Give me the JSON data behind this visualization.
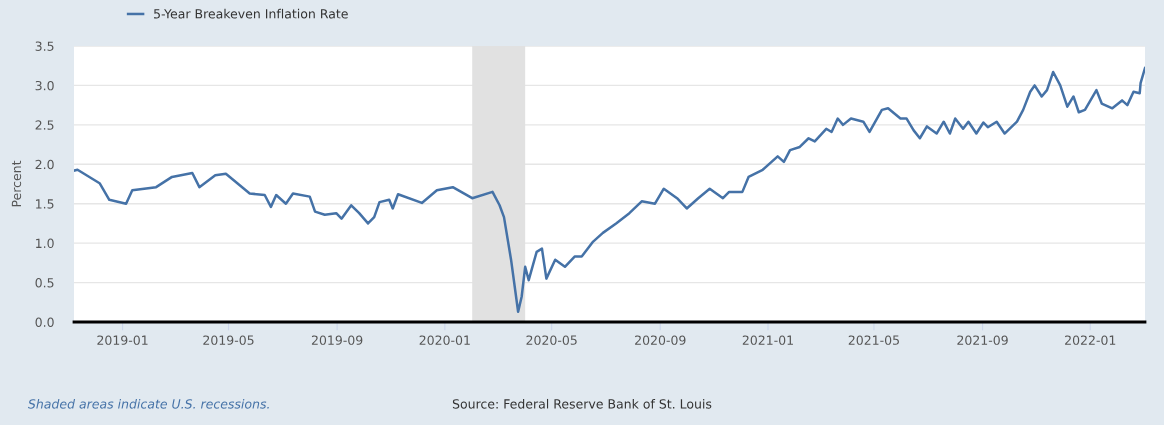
{
  "chart_data": {
    "type": "line",
    "ylabel": "Percent",
    "x": [
      "2018-11-07",
      "2018-11-11",
      "2018-12-06",
      "2018-12-17",
      "2019-01-05",
      "2019-01-12",
      "2019-02-08",
      "2019-02-26",
      "2019-03-21",
      "2019-03-29",
      "2019-04-16",
      "2019-04-28",
      "2019-05-25",
      "2019-06-11",
      "2019-06-18",
      "2019-06-24",
      "2019-07-05",
      "2019-07-13",
      "2019-08-01",
      "2019-08-07",
      "2019-08-18",
      "2019-08-31",
      "2019-09-06",
      "2019-09-17",
      "2019-09-26",
      "2019-10-06",
      "2019-10-13",
      "2019-10-19",
      "2019-10-30",
      "2019-11-03",
      "2019-11-09",
      "2019-12-06",
      "2019-12-23",
      "2020-01-10",
      "2020-02-01",
      "2020-02-24",
      "2020-03-03",
      "2020-03-08",
      "2020-03-16",
      "2020-03-24",
      "2020-03-28",
      "2020-04-01",
      "2020-04-05",
      "2020-04-14",
      "2020-04-20",
      "2020-04-25",
      "2020-05-05",
      "2020-05-16",
      "2020-05-27",
      "2020-06-04",
      "2020-06-17",
      "2020-06-28",
      "2020-07-13",
      "2020-07-28",
      "2020-08-11",
      "2020-08-26",
      "2020-09-05",
      "2020-09-20",
      "2020-10-01",
      "2020-10-14",
      "2020-10-27",
      "2020-11-11",
      "2020-11-18",
      "2020-12-03",
      "2020-12-10",
      "2020-12-26",
      "2021-01-12",
      "2021-01-19",
      "2021-01-26",
      "2021-02-06",
      "2021-02-16",
      "2021-02-23",
      "2021-03-08",
      "2021-03-14",
      "2021-03-21",
      "2021-03-27",
      "2021-04-05",
      "2021-04-19",
      "2021-04-26",
      "2021-05-10",
      "2021-05-17",
      "2021-05-31",
      "2021-06-07",
      "2021-06-15",
      "2021-06-22",
      "2021-06-30",
      "2021-07-11",
      "2021-07-19",
      "2021-07-26",
      "2021-08-01",
      "2021-08-10",
      "2021-08-16",
      "2021-08-25",
      "2021-09-02",
      "2021-09-07",
      "2021-09-17",
      "2021-09-26",
      "2021-10-10",
      "2021-10-17",
      "2021-10-25",
      "2021-10-30",
      "2021-11-07",
      "2021-11-13",
      "2021-11-20",
      "2021-11-28",
      "2021-12-06",
      "2021-12-13",
      "2021-12-19",
      "2021-12-26",
      "2022-01-08",
      "2022-01-14",
      "2022-01-26",
      "2022-02-06",
      "2022-02-12",
      "2022-02-19",
      "2022-02-26",
      "2022-02-27",
      "2022-03-04"
    ],
    "series": [
      {
        "name": "5-Year Breakeven Inflation Rate",
        "color": "#4572a7",
        "values": [
          1.92,
          1.93,
          1.76,
          1.55,
          1.5,
          1.67,
          1.71,
          1.84,
          1.89,
          1.71,
          1.86,
          1.88,
          1.63,
          1.61,
          1.46,
          1.61,
          1.5,
          1.63,
          1.59,
          1.4,
          1.36,
          1.38,
          1.31,
          1.48,
          1.38,
          1.25,
          1.33,
          1.52,
          1.55,
          1.44,
          1.62,
          1.51,
          1.67,
          1.71,
          1.57,
          1.65,
          1.48,
          1.33,
          0.79,
          0.13,
          0.32,
          0.7,
          0.53,
          0.89,
          0.93,
          0.55,
          0.79,
          0.7,
          0.83,
          0.83,
          1.02,
          1.13,
          1.25,
          1.38,
          1.53,
          1.5,
          1.69,
          1.57,
          1.44,
          1.57,
          1.69,
          1.57,
          1.65,
          1.65,
          1.84,
          1.93,
          2.1,
          2.03,
          2.18,
          2.22,
          2.33,
          2.29,
          2.45,
          2.41,
          2.58,
          2.5,
          2.58,
          2.54,
          2.41,
          2.69,
          2.71,
          2.58,
          2.58,
          2.43,
          2.33,
          2.48,
          2.39,
          2.54,
          2.39,
          2.58,
          2.45,
          2.54,
          2.39,
          2.53,
          2.47,
          2.54,
          2.39,
          2.54,
          2.69,
          2.92,
          3.0,
          2.86,
          2.94,
          3.17,
          3.0,
          2.73,
          2.86,
          2.66,
          2.69,
          2.94,
          2.77,
          2.71,
          2.81,
          2.75,
          2.92,
          2.9,
          3.03,
          3.22
        ]
      }
    ],
    "xlim": [
      "2018-11-07",
      "2022-03-04"
    ],
    "xticks": [
      {
        "value": "2019-01-01",
        "label": "2019-01"
      },
      {
        "value": "2019-05-01",
        "label": "2019-05"
      },
      {
        "value": "2019-09-01",
        "label": "2019-09"
      },
      {
        "value": "2020-01-01",
        "label": "2020-01"
      },
      {
        "value": "2020-05-01",
        "label": "2020-05"
      },
      {
        "value": "2020-09-01",
        "label": "2020-09"
      },
      {
        "value": "2021-01-01",
        "label": "2021-01"
      },
      {
        "value": "2021-05-01",
        "label": "2021-05"
      },
      {
        "value": "2021-09-01",
        "label": "2021-09"
      },
      {
        "value": "2022-01-01",
        "label": "2022-01"
      }
    ],
    "ylim": [
      0,
      3.5
    ],
    "yticks": [
      {
        "value": 0,
        "label": "0.0"
      },
      {
        "value": 0.5,
        "label": "0.5"
      },
      {
        "value": 1,
        "label": "1.0"
      },
      {
        "value": 1.5,
        "label": "1.5"
      },
      {
        "value": 2,
        "label": "2.0"
      },
      {
        "value": 2.5,
        "label": "2.5"
      },
      {
        "value": 3,
        "label": "3.0"
      },
      {
        "value": 3.5,
        "label": "3.5"
      }
    ],
    "bands": [
      {
        "axis": "x",
        "from": "2020-02-01",
        "to": "2020-04-01",
        "color": "#e1e1e1"
      }
    ],
    "grid": "y",
    "legend": "top left",
    "marker": "none",
    "line_style": "solid",
    "annotations": [
      "Shaded areas indicate U.S. recessions.",
      "Source: Federal Reserve Bank of St. Louis"
    ]
  }
}
